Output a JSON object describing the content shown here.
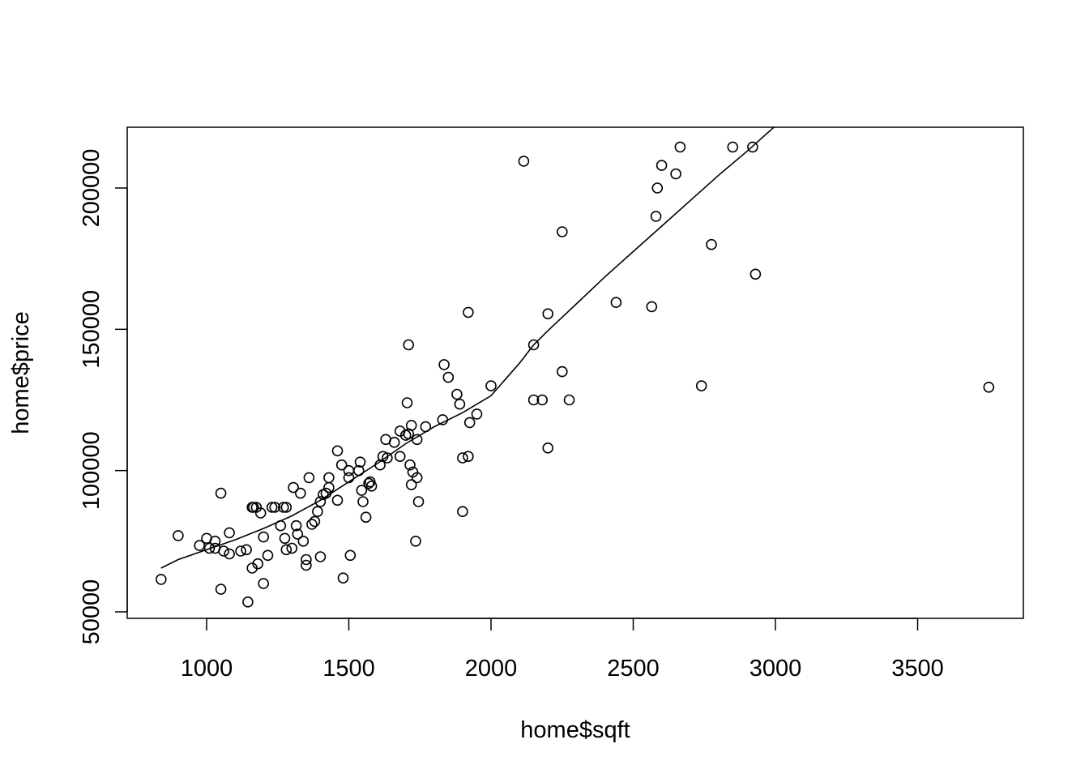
{
  "chart_data": {
    "type": "scatter",
    "title": "",
    "xlabel": "home$sqft",
    "ylabel": "home$price",
    "xlim": [
      840,
      3750
    ],
    "ylim": [
      54000,
      215000
    ],
    "xticks": [
      "1000",
      "1500",
      "2000",
      "2500",
      "3000",
      "3500"
    ],
    "yticks": [
      "50000",
      "100000",
      "150000",
      "200000"
    ],
    "grid": false,
    "legend": "none",
    "colors": {
      "points": "#000000",
      "line": "#000000",
      "frame": "#000000",
      "background": "#ffffff"
    },
    "points": [
      [
        840,
        61500
      ],
      [
        900,
        77000
      ],
      [
        975,
        73500
      ],
      [
        1000,
        76000
      ],
      [
        1010,
        72500
      ],
      [
        1030,
        75000
      ],
      [
        1030,
        72500
      ],
      [
        1050,
        92000
      ],
      [
        1050,
        58000
      ],
      [
        1060,
        71500
      ],
      [
        1080,
        78000
      ],
      [
        1080,
        70500
      ],
      [
        1120,
        71500
      ],
      [
        1140,
        72000
      ],
      [
        1145,
        53500
      ],
      [
        1160,
        87000
      ],
      [
        1165,
        87000
      ],
      [
        1160,
        65500
      ],
      [
        1175,
        87000
      ],
      [
        1180,
        67000
      ],
      [
        1190,
        85000
      ],
      [
        1200,
        76500
      ],
      [
        1200,
        60000
      ],
      [
        1215,
        70000
      ],
      [
        1230,
        87000
      ],
      [
        1240,
        87000
      ],
      [
        1260,
        80500
      ],
      [
        1270,
        87000
      ],
      [
        1275,
        76000
      ],
      [
        1280,
        87000
      ],
      [
        1280,
        72000
      ],
      [
        1300,
        72500
      ],
      [
        1305,
        94000
      ],
      [
        1315,
        80500
      ],
      [
        1320,
        77500
      ],
      [
        1330,
        92000
      ],
      [
        1340,
        75000
      ],
      [
        1350,
        68500
      ],
      [
        1350,
        66500
      ],
      [
        1360,
        97500
      ],
      [
        1370,
        81000
      ],
      [
        1380,
        82000
      ],
      [
        1390,
        85500
      ],
      [
        1400,
        89000
      ],
      [
        1400,
        69500
      ],
      [
        1410,
        91500
      ],
      [
        1420,
        92000
      ],
      [
        1430,
        97500
      ],
      [
        1430,
        94000
      ],
      [
        1460,
        107000
      ],
      [
        1460,
        89500
      ],
      [
        1475,
        102000
      ],
      [
        1480,
        62000
      ],
      [
        1500,
        100000
      ],
      [
        1500,
        97500
      ],
      [
        1505,
        70000
      ],
      [
        1535,
        100000
      ],
      [
        1540,
        103000
      ],
      [
        1545,
        93000
      ],
      [
        1550,
        89000
      ],
      [
        1560,
        83500
      ],
      [
        1570,
        95500
      ],
      [
        1575,
        96000
      ],
      [
        1580,
        94500
      ],
      [
        1610,
        102000
      ],
      [
        1620,
        105000
      ],
      [
        1630,
        111000
      ],
      [
        1635,
        104500
      ],
      [
        1660,
        110000
      ],
      [
        1680,
        105000
      ],
      [
        1680,
        114000
      ],
      [
        1700,
        112500
      ],
      [
        1705,
        124000
      ],
      [
        1710,
        144500
      ],
      [
        1710,
        113000
      ],
      [
        1715,
        102000
      ],
      [
        1720,
        95000
      ],
      [
        1720,
        116000
      ],
      [
        1725,
        99500
      ],
      [
        1735,
        75000
      ],
      [
        1740,
        111000
      ],
      [
        1740,
        97500
      ],
      [
        1745,
        89000
      ],
      [
        1770,
        115500
      ],
      [
        1830,
        118000
      ],
      [
        1835,
        137500
      ],
      [
        1850,
        133000
      ],
      [
        1880,
        127000
      ],
      [
        1890,
        123500
      ],
      [
        1900,
        85500
      ],
      [
        1900,
        104500
      ],
      [
        1920,
        105000
      ],
      [
        1920,
        156000
      ],
      [
        1925,
        117000
      ],
      [
        1950,
        120000
      ],
      [
        2000,
        130000
      ],
      [
        2115,
        209500
      ],
      [
        2150,
        144500
      ],
      [
        2150,
        125000
      ],
      [
        2180,
        125000
      ],
      [
        2200,
        155500
      ],
      [
        2200,
        108000
      ],
      [
        2250,
        184500
      ],
      [
        2250,
        135000
      ],
      [
        2275,
        125000
      ],
      [
        2440,
        159500
      ],
      [
        2565,
        158000
      ],
      [
        2580,
        190000
      ],
      [
        2585,
        200000
      ],
      [
        2600,
        208000
      ],
      [
        2650,
        205000
      ],
      [
        2665,
        214500
      ],
      [
        2740,
        130000
      ],
      [
        2775,
        180000
      ],
      [
        2850,
        214500
      ],
      [
        2920,
        214500
      ],
      [
        2930,
        169500
      ],
      [
        3750,
        129500
      ]
    ],
    "lowess": [
      [
        840,
        65500
      ],
      [
        900,
        68500
      ],
      [
        1000,
        72000
      ],
      [
        1100,
        75500
      ],
      [
        1200,
        79500
      ],
      [
        1300,
        84000
      ],
      [
        1400,
        89500
      ],
      [
        1500,
        96000
      ],
      [
        1600,
        102500
      ],
      [
        1700,
        109500
      ],
      [
        1800,
        115500
      ],
      [
        1900,
        120500
      ],
      [
        2000,
        126500
      ],
      [
        2100,
        138000
      ],
      [
        2150,
        144500
      ],
      [
        2200,
        149500
      ],
      [
        2300,
        159000
      ],
      [
        2400,
        168500
      ],
      [
        2500,
        177500
      ],
      [
        2600,
        186500
      ],
      [
        2700,
        195500
      ],
      [
        2800,
        204500
      ],
      [
        2900,
        213000
      ],
      [
        3000,
        222000
      ],
      [
        3020,
        223000
      ]
    ]
  }
}
